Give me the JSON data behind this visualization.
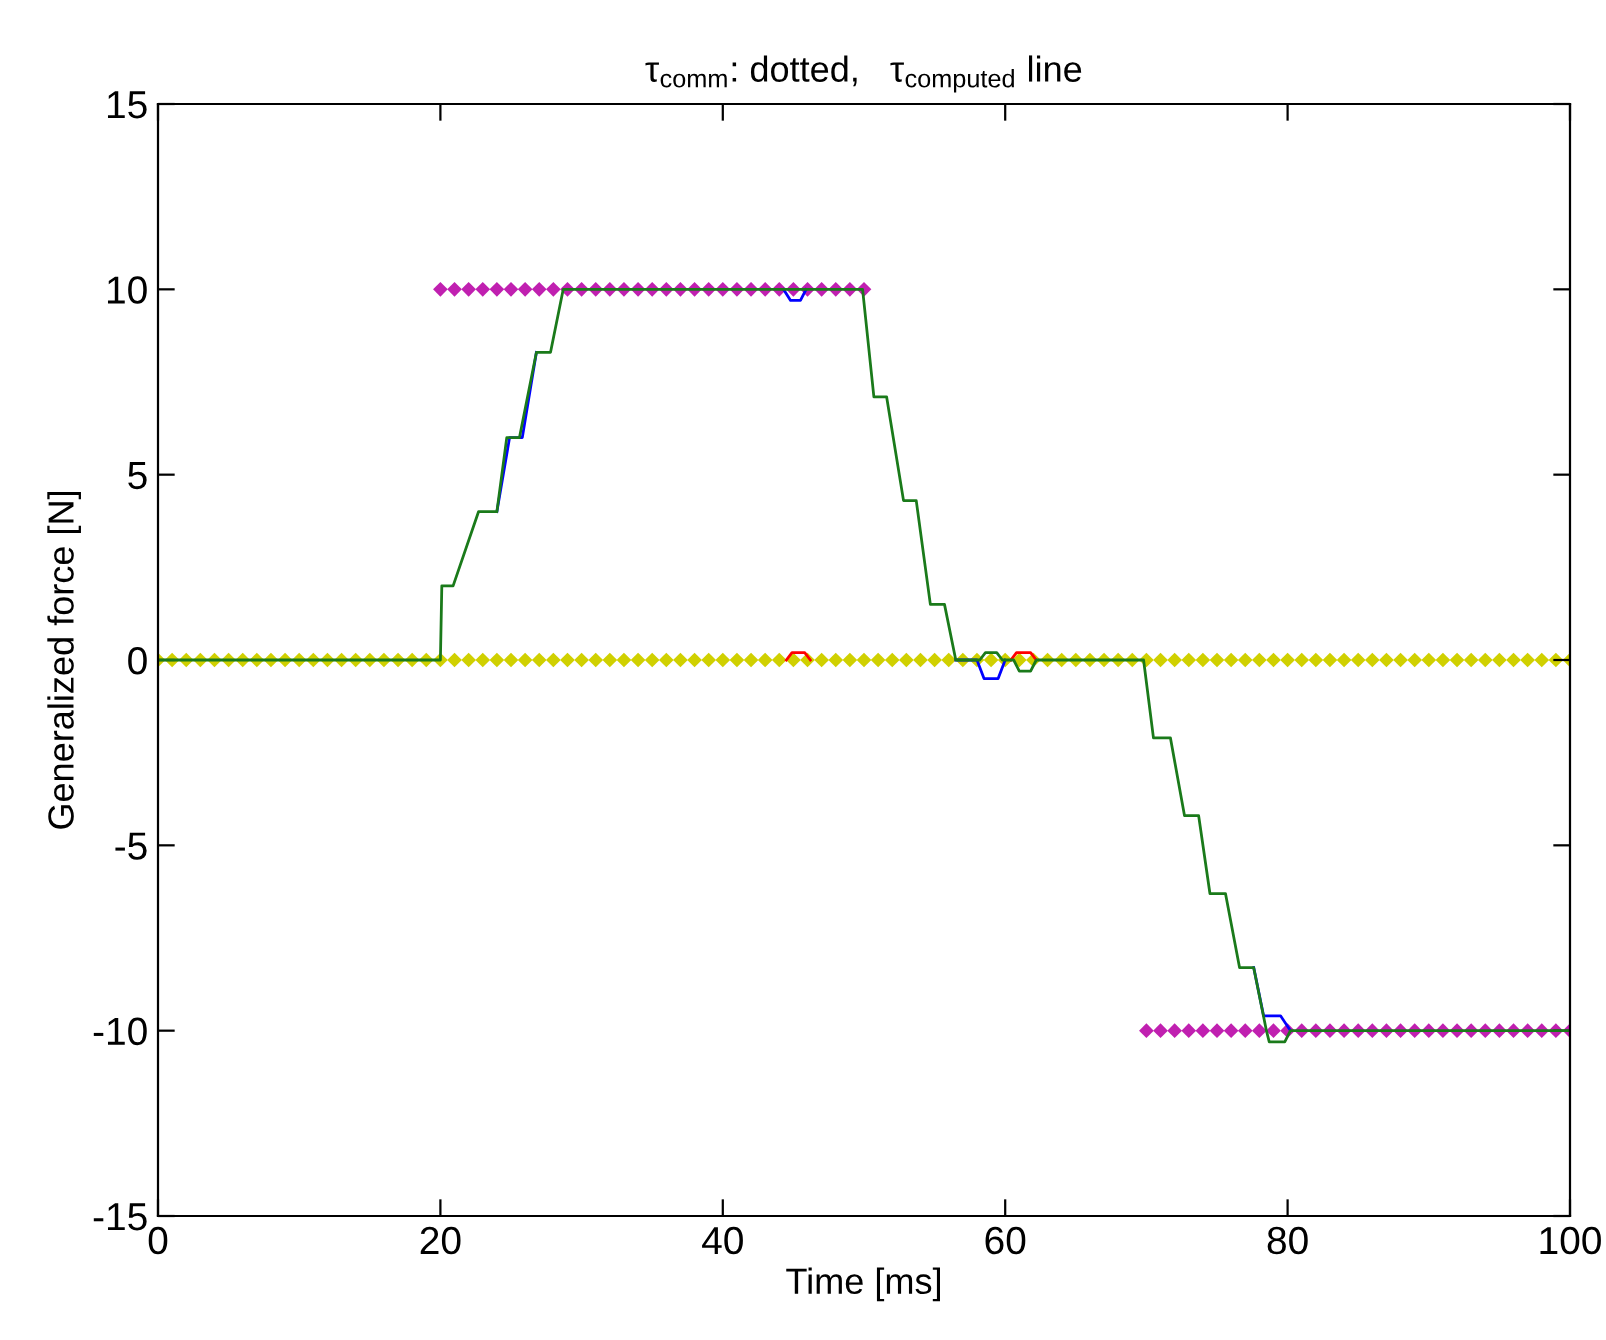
{
  "chart_data": {
    "type": "line",
    "title": "τ$_{comm}$: dotted,   τ$_{computed}$ line",
    "xlabel": "Time [ms]",
    "ylabel": "Generalized force [N]",
    "xlim": [
      0,
      100
    ],
    "xticks": [
      0,
      20,
      40,
      60,
      80,
      100
    ],
    "ylim": [
      -15,
      15
    ],
    "yticks": [
      -15,
      -10,
      -5,
      0,
      5,
      10,
      15
    ],
    "grid": false,
    "legend": false,
    "series": [
      {
        "type": "scatter",
        "color": "#d0d000",
        "marker": "diamond",
        "x": [
          0,
          1,
          2,
          3,
          4,
          5,
          6,
          7,
          8,
          9,
          10,
          11,
          12,
          13,
          14,
          15,
          16,
          17,
          18,
          19,
          20,
          21,
          22,
          23,
          24,
          25,
          26,
          27,
          28,
          29,
          30,
          31,
          32,
          33,
          34,
          35,
          36,
          37,
          38,
          39,
          40,
          41,
          42,
          43,
          44,
          45,
          46,
          47,
          48,
          49,
          50,
          51,
          52,
          53,
          54,
          55,
          56,
          57,
          58,
          59,
          60,
          61,
          62,
          63,
          64,
          65,
          66,
          67,
          68,
          69,
          70,
          71,
          72,
          73,
          74,
          75,
          76,
          77,
          78,
          79,
          80,
          81,
          82,
          83,
          84,
          85,
          86,
          87,
          88,
          89,
          90,
          91,
          92,
          93,
          94,
          95,
          96,
          97,
          98,
          99,
          100
        ],
        "values": [
          0,
          0,
          0,
          0,
          0,
          0,
          0,
          0,
          0,
          0,
          0,
          0,
          0,
          0,
          0,
          0,
          0,
          0,
          0,
          0,
          0,
          0,
          0,
          0,
          0,
          0,
          0,
          0,
          0,
          0,
          0,
          0,
          0,
          0,
          0,
          0,
          0,
          0,
          0,
          0,
          0,
          0,
          0,
          0,
          0,
          0,
          0,
          0,
          0,
          0,
          0,
          0,
          0,
          0,
          0,
          0,
          0,
          0,
          0,
          0,
          0,
          0,
          0,
          0,
          0,
          0,
          0,
          0,
          0,
          0,
          0,
          0,
          0,
          0,
          0,
          0,
          0,
          0,
          0,
          0,
          0,
          0,
          0,
          0,
          0,
          0,
          0,
          0,
          0,
          0,
          0,
          0,
          0,
          0,
          0,
          0,
          0,
          0,
          0,
          0,
          0
        ]
      },
      {
        "type": "scatter",
        "color": "#c020b0",
        "marker": "diamond",
        "x": [
          20,
          21,
          22,
          23,
          24,
          25,
          26,
          27,
          28,
          29,
          30,
          31,
          32,
          33,
          34,
          35,
          36,
          37,
          38,
          39,
          40,
          41,
          42,
          43,
          44,
          45,
          46,
          47,
          48,
          49,
          50,
          70,
          71,
          72,
          73,
          74,
          75,
          76,
          77,
          78,
          79,
          80,
          81,
          82,
          83,
          84,
          85,
          86,
          87,
          88,
          89,
          90,
          91,
          92,
          93,
          94,
          95,
          96,
          97,
          98,
          99,
          100
        ],
        "values": [
          10,
          10,
          10,
          10,
          10,
          10,
          10,
          10,
          10,
          10,
          10,
          10,
          10,
          10,
          10,
          10,
          10,
          10,
          10,
          10,
          10,
          10,
          10,
          10,
          10,
          10,
          10,
          10,
          10,
          10,
          10,
          -10,
          -10,
          -10,
          -10,
          -10,
          -10,
          -10,
          -10,
          -10,
          -10,
          -10,
          -10,
          -10,
          -10,
          -10,
          -10,
          -10,
          -10,
          -10,
          -10,
          -10,
          -10,
          -10,
          -10,
          -10,
          -10,
          -10,
          -10,
          -10,
          -10,
          -10
        ]
      },
      {
        "color": "#ff0000",
        "marker": "none",
        "line_style": "solid",
        "x": [
          44.5,
          44.9,
          45.8,
          46.2,
          53,
          60.4,
          60.8,
          61.8,
          62.2
        ],
        "values": [
          0,
          0.2,
          0.2,
          0,
          null,
          0,
          0.2,
          0.2,
          0
        ]
      },
      {
        "color": "#0000ff",
        "marker": "none",
        "line_style": "solid",
        "x": [
          24,
          24.9,
          25.8,
          26.8,
          35,
          44.3,
          44.8,
          45.5,
          45.9,
          52,
          56.5,
          58.0,
          58.5,
          59.5,
          60.0,
          70,
          77.6,
          78.3,
          78.6,
          79.5,
          80.2
        ],
        "values": [
          4,
          6,
          6,
          8.3,
          null,
          10,
          9.7,
          9.7,
          10,
          null,
          0,
          0,
          -0.5,
          -0.5,
          0,
          null,
          -8.3,
          -9.6,
          -9.6,
          -9.6,
          -10
        ]
      },
      {
        "color": "#1a7a1a",
        "marker": "none",
        "line_style": "solid",
        "x": [
          0,
          20,
          20.1,
          20.9,
          22.7,
          24,
          24.7,
          25.6,
          26.8,
          27.8,
          28.7,
          49.9,
          50.7,
          51.6,
          52.8,
          53.7,
          54.7,
          55.7,
          56.5,
          58.2,
          58.6,
          59.4,
          59.8,
          60.6,
          61.0,
          61.8,
          62.2,
          69.8,
          70.5,
          71.7,
          72.7,
          73.7,
          74.5,
          75.6,
          76.6,
          77.6,
          78.5,
          78.7,
          79.8,
          80.2,
          100
        ],
        "values": [
          0,
          0,
          2,
          2,
          4,
          4,
          6,
          6,
          8.3,
          8.3,
          10,
          10,
          7.1,
          7.1,
          4.3,
          4.3,
          1.5,
          1.5,
          0,
          0,
          0.2,
          0.2,
          0,
          0,
          -0.3,
          -0.3,
          0,
          0,
          -2.1,
          -2.1,
          -4.2,
          -4.2,
          -6.3,
          -6.3,
          -8.3,
          -8.3,
          -10,
          -10.3,
          -10.3,
          -10,
          -10
        ]
      }
    ]
  }
}
